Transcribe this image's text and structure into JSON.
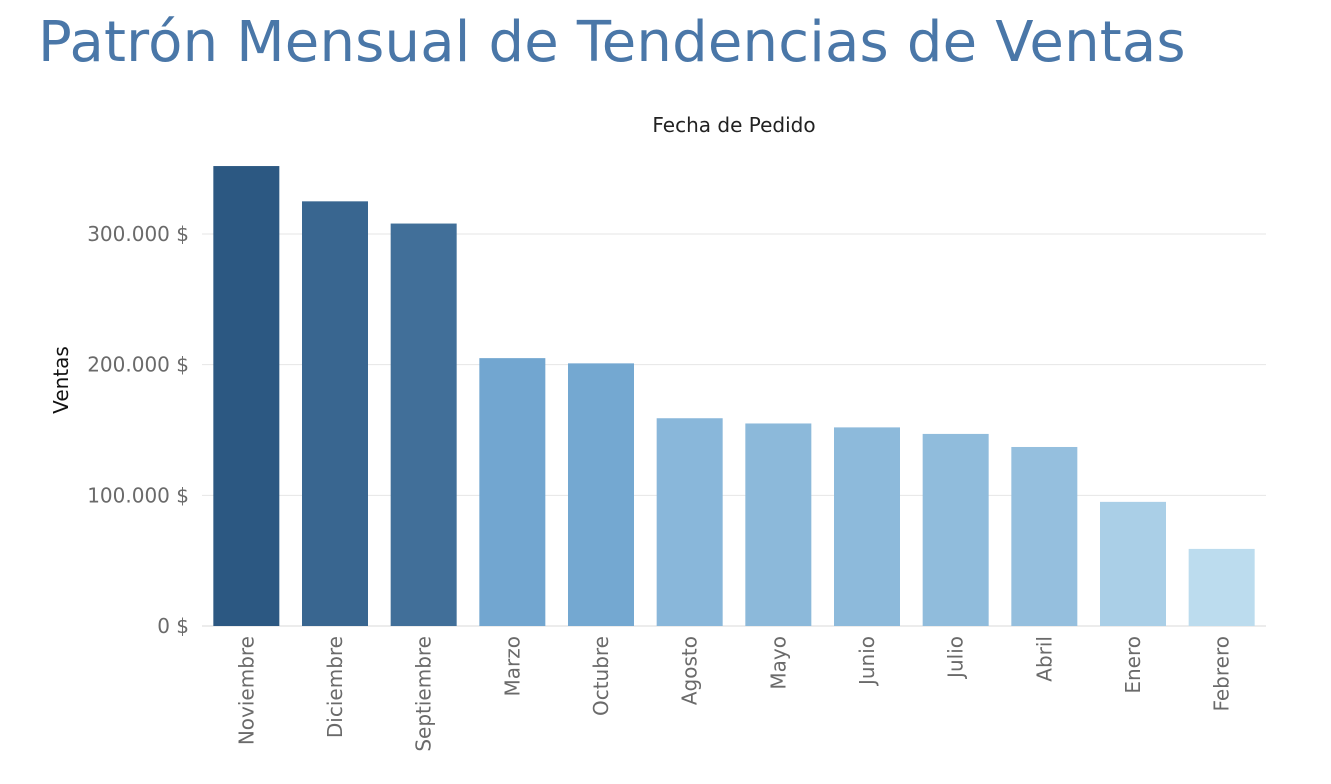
{
  "page": {
    "title": "Patrón Mensual de Tendencias de Ventas"
  },
  "chart_data": {
    "type": "bar",
    "title": "Fecha de Pedido",
    "xlabel": "",
    "ylabel": "Ventas",
    "categories": [
      "Noviembre",
      "Diciembre",
      "Septiembre",
      "Marzo",
      "Octubre",
      "Agosto",
      "Mayo",
      "Junio",
      "Julio",
      "Abril",
      "Enero",
      "Febrero"
    ],
    "values": [
      352000,
      325000,
      308000,
      205000,
      201000,
      159000,
      155000,
      152000,
      147000,
      137000,
      95000,
      59000
    ],
    "ylim": [
      0,
      375000
    ],
    "yticks": [
      0,
      100000,
      200000,
      300000
    ],
    "ytick_labels": [
      "0 $",
      "100.000 $",
      "200.000 $",
      "300.000 $"
    ],
    "grid": true,
    "legend": "none",
    "color_scale": {
      "low": "#bcdcee",
      "mid": "#72a6d0",
      "high": "#2c5882"
    }
  }
}
